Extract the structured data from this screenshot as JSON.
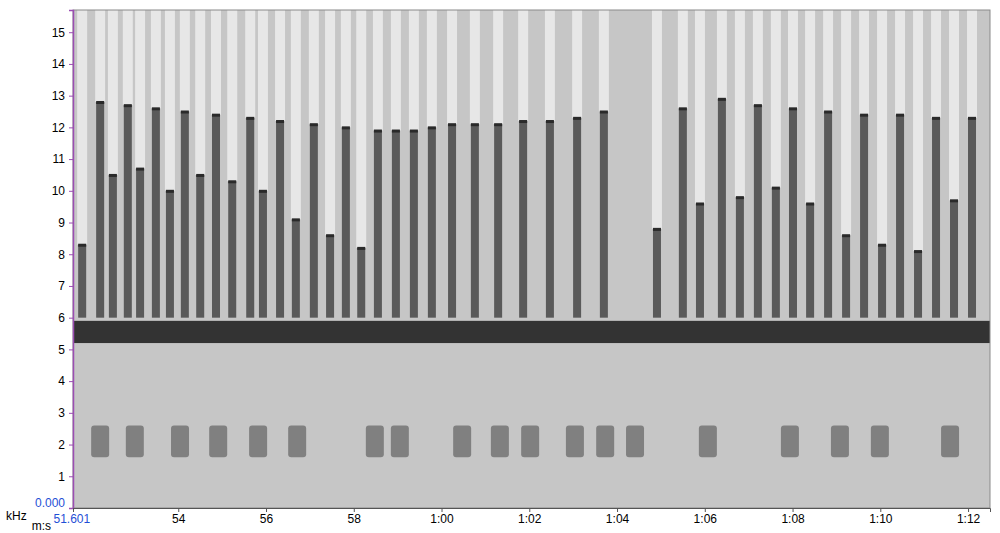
{
  "chart_data": {
    "type": "spectrogram",
    "x_label": "m:s",
    "y_label": "kHz",
    "xlim": [
      51.601,
      72.5
    ],
    "ylim": [
      0,
      15.7
    ],
    "xticks": [
      51.601,
      54,
      56,
      58,
      {
        "value": 60,
        "label": "1:00"
      },
      {
        "value": 62,
        "label": "1:02"
      },
      {
        "value": 64,
        "label": "1:04"
      },
      {
        "value": 66,
        "label": "1:06"
      },
      {
        "value": 68,
        "label": "1:08"
      },
      {
        "value": 70,
        "label": "1:10"
      },
      {
        "value": 72,
        "label": "1:12"
      }
    ],
    "yticks": [
      {
        "value": 0,
        "label": "0.000"
      },
      1,
      2,
      3,
      4,
      5,
      6,
      7,
      8,
      9,
      10,
      11,
      12,
      13,
      14,
      15
    ],
    "grid": false,
    "color": "#5a5a5a",
    "band": [
      5.2,
      5.9
    ],
    "calls": {
      "x": [
        51.81,
        52.22,
        52.51,
        52.85,
        53.13,
        53.49,
        53.81,
        54.15,
        54.5,
        54.86,
        55.23,
        55.64,
        55.93,
        56.32,
        56.68,
        57.09,
        57.46,
        57.82,
        58.17,
        58.55,
        58.96,
        59.37,
        59.78,
        60.24,
        60.76,
        61.29,
        61.86,
        62.47,
        63.09,
        63.7,
        64.91,
        65.5,
        65.89,
        66.39,
        66.8,
        67.21,
        67.62,
        68.01,
        68.4,
        68.81,
        69.22,
        69.63,
        70.04,
        70.45,
        70.86,
        71.27,
        71.68,
        72.09
      ],
      "low": [
        6.0,
        6.0,
        6.0,
        6.0,
        6.0,
        6.0,
        6.0,
        6.0,
        6.0,
        6.0,
        6.0,
        6.0,
        6.0,
        6.0,
        6.0,
        6.0,
        6.0,
        6.0,
        6.0,
        6.0,
        6.0,
        6.0,
        6.0,
        6.0,
        6.0,
        6.0,
        6.0,
        6.0,
        6.0,
        6.0,
        6.0,
        6.0,
        6.0,
        6.0,
        6.0,
        6.0,
        6.0,
        6.0,
        6.0,
        6.0,
        6.0,
        6.0,
        6.0,
        6.0,
        6.0,
        6.0,
        6.0,
        6.0
      ],
      "high": [
        8.3,
        12.8,
        10.5,
        12.7,
        10.7,
        12.6,
        10.0,
        12.5,
        10.5,
        12.4,
        10.3,
        12.3,
        10.0,
        12.2,
        9.1,
        12.1,
        8.6,
        12.0,
        8.2,
        11.9,
        11.9,
        11.9,
        12.0,
        12.1,
        12.1,
        12.1,
        12.2,
        12.2,
        12.3,
        12.5,
        8.8,
        12.6,
        9.6,
        12.9,
        9.8,
        12.7,
        10.1,
        12.6,
        9.6,
        12.5,
        8.6,
        12.4,
        8.3,
        12.4,
        8.1,
        12.3,
        9.7,
        12.3
      ]
    },
    "blobs": {
      "x": [
        52.22,
        53.01,
        54.04,
        54.91,
        55.82,
        56.71,
        58.48,
        59.05,
        60.47,
        61.33,
        62.02,
        63.04,
        63.73,
        64.41,
        66.07,
        67.94,
        69.08,
        69.99,
        71.59
      ],
      "low": [
        1.6,
        1.6,
        1.6,
        1.6,
        1.6,
        1.6,
        1.6,
        1.6,
        1.6,
        1.6,
        1.6,
        1.6,
        1.6,
        1.6,
        1.6,
        1.6,
        1.6,
        1.6,
        1.6
      ],
      "high": [
        2.6,
        2.6,
        2.6,
        2.6,
        2.6,
        2.6,
        2.6,
        2.6,
        2.6,
        2.6,
        2.6,
        2.6,
        2.6,
        2.6,
        2.6,
        2.6,
        2.6,
        2.6,
        2.6
      ]
    }
  }
}
